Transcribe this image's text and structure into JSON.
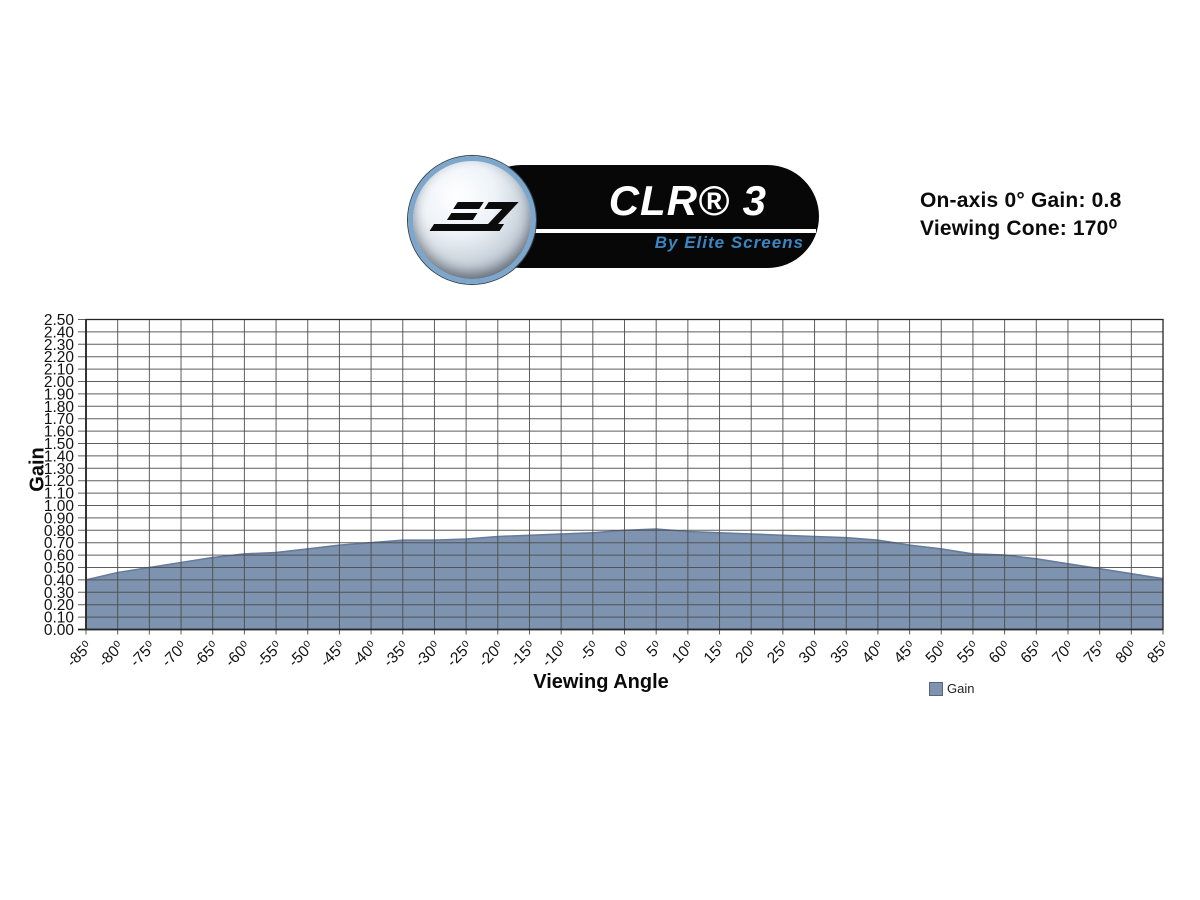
{
  "logo": {
    "product_name": "CLR® 3",
    "byline": "By Elite Screens",
    "icon": "elite-screens-emblem-icon",
    "colors": {
      "ring_blue": "#7BA7CE",
      "byline_blue": "#3C85C0",
      "pill_black": "#070707"
    }
  },
  "spec_header": {
    "line1": "On-axis 0° Gain: 0.8",
    "line2": "Viewing Cone: 170⁰"
  },
  "chart_data": {
    "type": "area",
    "title": "",
    "xlabel": "Viewing Angle",
    "ylabel": "Gain",
    "legend": [
      {
        "label": "Gain",
        "color": "#7E93AF"
      }
    ],
    "legend_position": "bottom-right",
    "grid": true,
    "x_suffix": "⁰",
    "categories": [
      -85,
      -80,
      -75,
      -70,
      -65,
      -60,
      -55,
      -50,
      -45,
      -40,
      -35,
      -30,
      -25,
      -20,
      -15,
      -10,
      -5,
      0,
      5,
      10,
      15,
      20,
      25,
      30,
      35,
      40,
      45,
      50,
      55,
      60,
      65,
      70,
      75,
      80,
      85
    ],
    "series": [
      {
        "name": "Gain",
        "values": [
          0.4,
          0.46,
          0.5,
          0.54,
          0.58,
          0.61,
          0.62,
          0.65,
          0.68,
          0.7,
          0.72,
          0.72,
          0.73,
          0.75,
          0.76,
          0.77,
          0.78,
          0.8,
          0.81,
          0.79,
          0.78,
          0.77,
          0.76,
          0.75,
          0.74,
          0.72,
          0.68,
          0.65,
          0.61,
          0.6,
          0.57,
          0.53,
          0.49,
          0.45,
          0.41
        ]
      }
    ],
    "ylim": [
      0,
      2.5
    ],
    "ytick_step": 0.1,
    "ytick_decimals": 2,
    "colors": {
      "area_fill": "#7E93AF",
      "area_edge": "#667C9D",
      "grid": "#4D4D4D",
      "axis": "#262626",
      "text": "#111111"
    }
  }
}
